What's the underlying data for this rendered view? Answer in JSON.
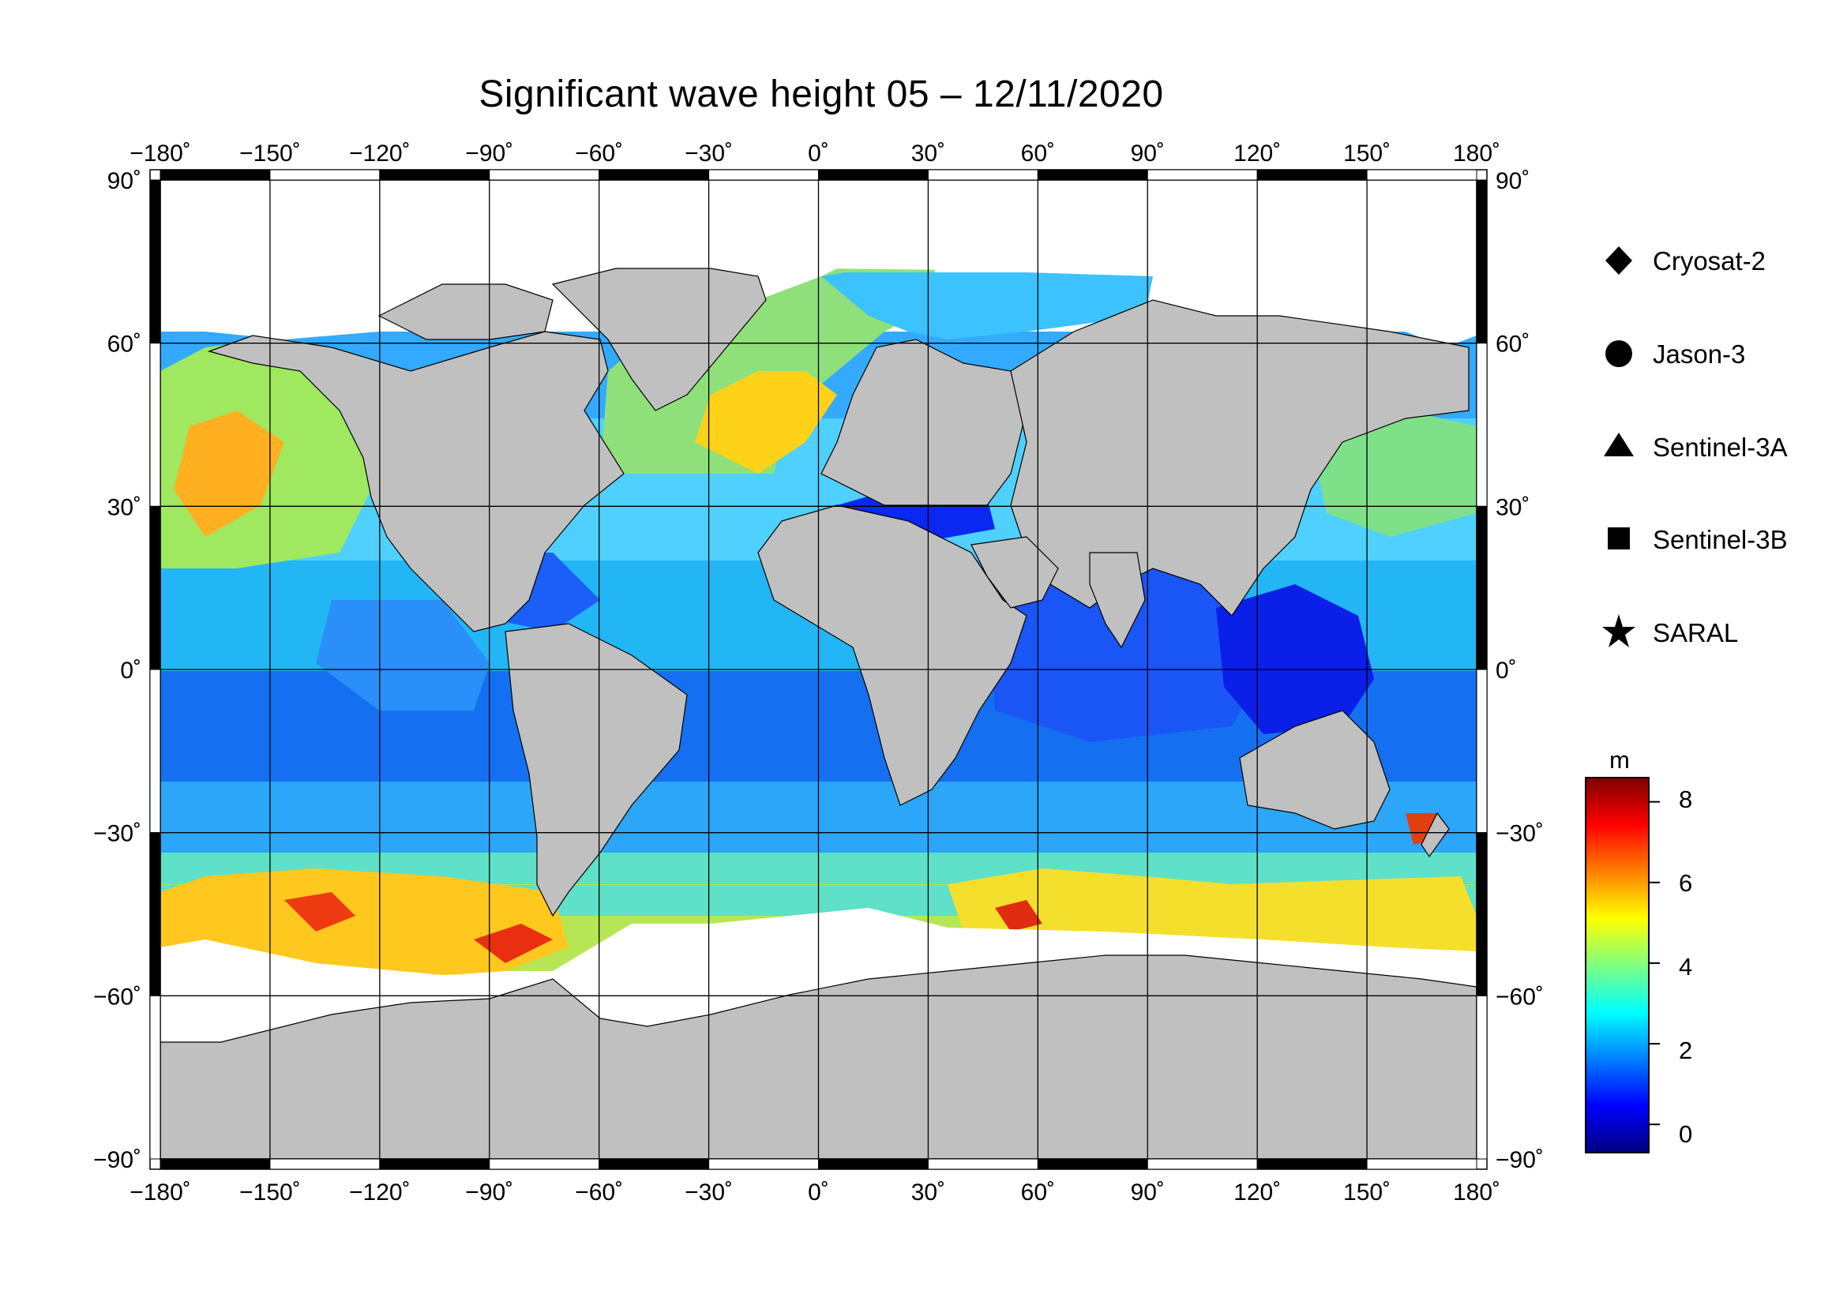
{
  "title": "Significant wave height 05 – 12/11/2020",
  "map": {
    "projection": "equirectangular",
    "lon_range": [
      -180,
      180
    ],
    "lat_range": [
      -90,
      90
    ],
    "lon_ticks": [
      "−180˚",
      "−150˚",
      "−120˚",
      "−90˚",
      "−60˚",
      "−30˚",
      "0˚",
      "30˚",
      "60˚",
      "90˚",
      "120˚",
      "150˚",
      "180˚"
    ],
    "lat_ticks": [
      "90˚",
      "60˚",
      "30˚",
      "0˚",
      "−30˚",
      "−60˚",
      "−90˚"
    ],
    "land_color": "#c0c0c0",
    "grid_color": "#000000"
  },
  "legend": {
    "items": [
      {
        "marker": "diamond",
        "label": "Cryosat-2"
      },
      {
        "marker": "circle",
        "label": "Jason-3"
      },
      {
        "marker": "triangle",
        "label": "Sentinel-3A"
      },
      {
        "marker": "square",
        "label": "Sentinel-3B"
      },
      {
        "marker": "star",
        "label": "SARAL"
      }
    ]
  },
  "colorbar": {
    "unit": "m",
    "range": [
      -0.7,
      8.6
    ],
    "ticks": [
      "8",
      "6",
      "4",
      "2",
      "0"
    ],
    "colormap": "jet",
    "colors": [
      "#00007f",
      "#0000ff",
      "#007fff",
      "#00ffff",
      "#7fff7f",
      "#ffff00",
      "#ff7f00",
      "#ff0000",
      "#7f0000"
    ]
  }
}
